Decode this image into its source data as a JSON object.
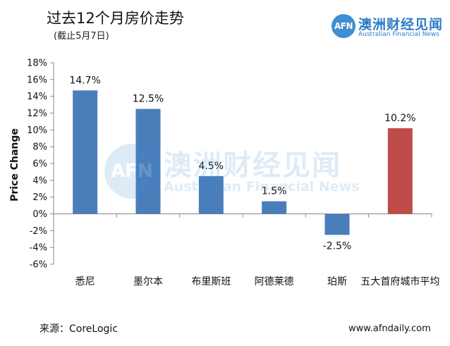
{
  "header": {
    "title": "过去12个月房价走势",
    "subtitle": "(截止5月7日)"
  },
  "brand": {
    "logo_mark": "AFN",
    "name_cn": "澳洲财经见闻",
    "name_en": "Australian Financial News",
    "color": "#2d7cc8"
  },
  "footer": {
    "source": "来源：CoreLogic",
    "website": "www.afndaily.com"
  },
  "chart_data": {
    "type": "bar",
    "categories": [
      "悉尼",
      "墨尔本",
      "布里斯班",
      "阿德莱德",
      "珀斯",
      "五大首府城市平均"
    ],
    "values": [
      14.7,
      12.5,
      4.5,
      1.5,
      -2.5,
      10.2
    ],
    "value_labels": [
      "14.7%",
      "12.5%",
      "4.5%",
      "1.5%",
      "-2.5%",
      "10.2%"
    ],
    "bar_colors": [
      "#4a7ebb",
      "#4a7ebb",
      "#4a7ebb",
      "#4a7ebb",
      "#4a7ebb",
      "#be4b48"
    ],
    "ylabel": "Price Change",
    "ylim": [
      -6,
      18
    ],
    "yticks": [
      18,
      16,
      14,
      12,
      10,
      8,
      6,
      4,
      2,
      0,
      -2,
      -4,
      -6
    ],
    "ytick_labels": [
      "18%",
      "16%",
      "14%",
      "12%",
      "10%",
      "8%",
      "6%",
      "4%",
      "2%",
      "0%",
      "-2%",
      "-4%",
      "-6%"
    ],
    "grid": false,
    "legend": "none"
  }
}
